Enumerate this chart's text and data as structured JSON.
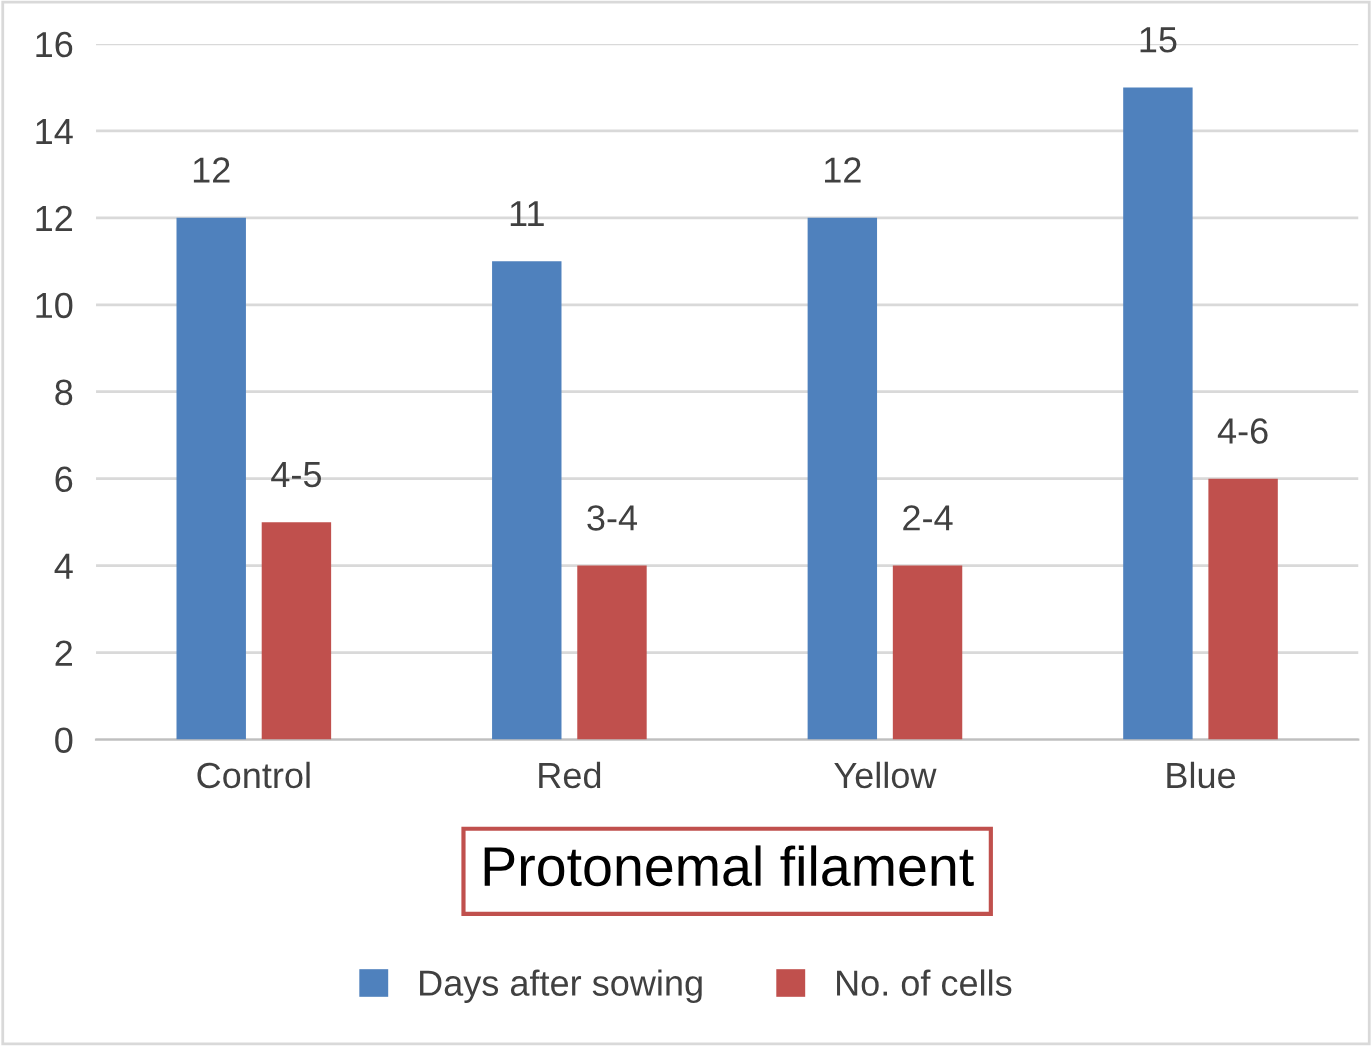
{
  "chart_data": {
    "type": "bar",
    "xlabel": "Protonemal filament",
    "categories": [
      "Control",
      "Red",
      "Yellow",
      "Blue"
    ],
    "series": [
      {
        "name": "Days after sowing",
        "color": "#4f81bd",
        "values": [
          12,
          11,
          12,
          15
        ],
        "value_labels": [
          "12",
          "11",
          "12",
          "15"
        ]
      },
      {
        "name": "No. of cells",
        "color": "#c0504d",
        "values": [
          5,
          4,
          4,
          6
        ],
        "value_labels": [
          "4-5",
          "3-4",
          "2-4",
          "4-6"
        ]
      }
    ],
    "ylim": [
      0,
      16
    ],
    "yticks": [
      0,
      2,
      4,
      6,
      8,
      10,
      12,
      14,
      16
    ],
    "grid": "y",
    "legend": "bottom"
  }
}
